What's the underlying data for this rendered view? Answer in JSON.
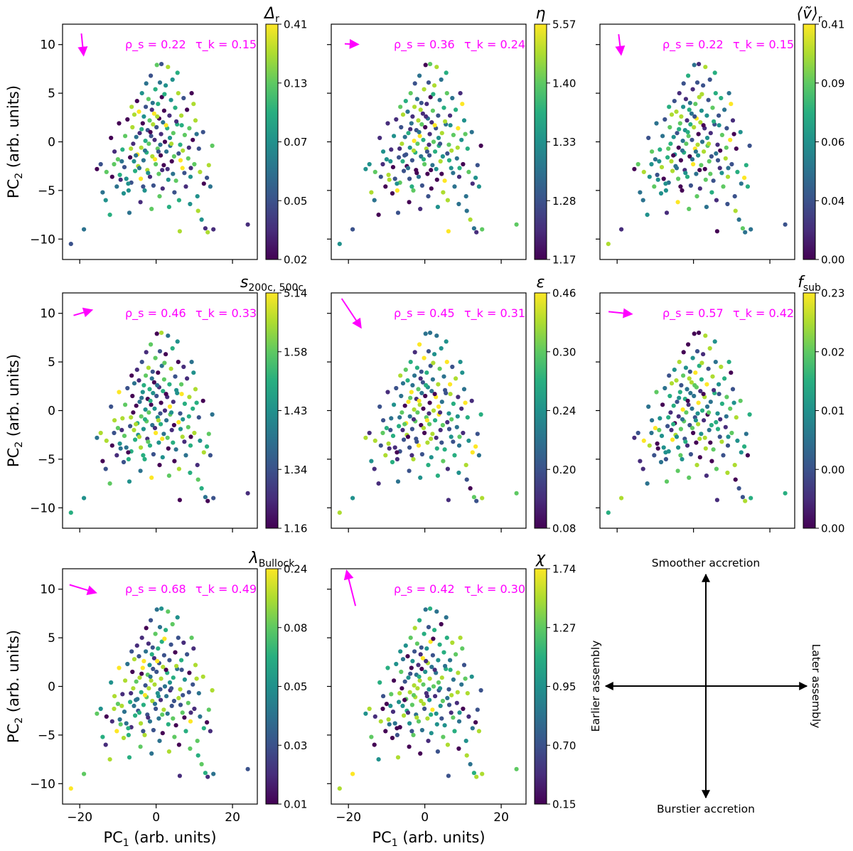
{
  "chart_data": {
    "type": "scatter",
    "figure_grid": "3x3",
    "x_axis": {
      "label": "PC",
      "label_sub": "1",
      "label_tail": " (arb. units)",
      "ticks": [
        -20,
        0,
        20
      ],
      "range": [
        -24.5,
        26.5
      ]
    },
    "y_axis": {
      "label": "PC",
      "label_sub": "2",
      "label_tail": " (arb. units)",
      "ticks": [
        -10,
        -5,
        0,
        5,
        10
      ],
      "range": [
        -12.1,
        12.1
      ]
    },
    "colormap": "viridis",
    "points": [
      [
        -22.3,
        -10.5
      ],
      [
        -18.9,
        -9.0
      ],
      [
        -14.5,
        -2.3
      ],
      [
        -14.0,
        -5.2
      ],
      [
        -13.2,
        -6.0
      ],
      [
        -13.0,
        -3.1
      ],
      [
        -12.1,
        -7.5
      ],
      [
        -11.5,
        -3.6
      ],
      [
        -11.0,
        -2.3
      ],
      [
        -10.9,
        -1.0
      ],
      [
        -10.3,
        -4.6
      ],
      [
        -9.5,
        -3.4
      ],
      [
        -9.0,
        -2.0
      ],
      [
        -8.8,
        -0.8
      ],
      [
        -8.1,
        0.6
      ],
      [
        -7.8,
        -3.8
      ],
      [
        -7.2,
        -5.0
      ],
      [
        -7.0,
        -7.3
      ],
      [
        -6.8,
        -1.6
      ],
      [
        -6.5,
        -4.2
      ],
      [
        -6.2,
        1.5
      ],
      [
        -6.0,
        -0.2
      ],
      [
        -5.7,
        2.8
      ],
      [
        -5.5,
        -3.0
      ],
      [
        -5.2,
        0.5
      ],
      [
        -5.0,
        4.2
      ],
      [
        -4.9,
        -1.3
      ],
      [
        -4.7,
        -2.5
      ],
      [
        -4.5,
        3.1
      ],
      [
        -4.3,
        0.9
      ],
      [
        -4.0,
        -3.8
      ],
      [
        -3.9,
        -0.6
      ],
      [
        -3.7,
        5.0
      ],
      [
        -3.5,
        1.9
      ],
      [
        -3.3,
        -1.9
      ],
      [
        -3.2,
        2.6
      ],
      [
        -3.0,
        -5.0
      ],
      [
        -2.8,
        0.1
      ],
      [
        -2.7,
        3.6
      ],
      [
        -2.5,
        -1.1
      ],
      [
        -2.3,
        -2.9
      ],
      [
        -2.2,
        1.2
      ],
      [
        -2.0,
        4.4
      ],
      [
        -1.9,
        -0.2
      ],
      [
        -1.7,
        2.2
      ],
      [
        -1.6,
        -3.6
      ],
      [
        -1.4,
        6.8
      ],
      [
        -1.3,
        0.6
      ],
      [
        -1.1,
        3.3
      ],
      [
        -1.0,
        -1.5
      ],
      [
        -0.8,
        1.8
      ],
      [
        -0.7,
        -4.5
      ],
      [
        -0.5,
        2.9
      ],
      [
        -0.4,
        0.2
      ],
      [
        -0.2,
        5.4
      ],
      [
        -0.1,
        -2.3
      ],
      [
        0.1,
        1.5
      ],
      [
        0.2,
        7.9
      ],
      [
        0.4,
        -0.7
      ],
      [
        0.5,
        3.9
      ],
      [
        0.7,
        -3.3
      ],
      [
        0.8,
        2.4
      ],
      [
        1.0,
        6.1
      ],
      [
        1.2,
        -1.4
      ],
      [
        1.3,
        0.8
      ],
      [
        1.5,
        4.6
      ],
      [
        1.7,
        -4.8
      ],
      [
        1.8,
        2.0
      ],
      [
        2.0,
        -2.4
      ],
      [
        2.1,
        3.2
      ],
      [
        2.3,
        0.0
      ],
      [
        2.5,
        5.8
      ],
      [
        2.7,
        -1.0
      ],
      [
        2.9,
        1.4
      ],
      [
        3.1,
        7.7
      ],
      [
        3.2,
        -3.9
      ],
      [
        3.5,
        2.7
      ],
      [
        3.7,
        -0.4
      ],
      [
        3.9,
        4.3
      ],
      [
        4.1,
        -2.0
      ],
      [
        4.3,
        6.4
      ],
      [
        4.5,
        0.9
      ],
      [
        4.7,
        -1.5
      ],
      [
        5.0,
        3.5
      ],
      [
        5.2,
        -4.0
      ],
      [
        5.5,
        1.8
      ],
      [
        5.8,
        5.0
      ],
      [
        6.0,
        -6.0
      ],
      [
        6.2,
        -9.2
      ],
      [
        6.3,
        -0.3
      ],
      [
        6.6,
        2.7
      ],
      [
        6.9,
        -2.7
      ],
      [
        7.2,
        4.5
      ],
      [
        7.5,
        0.7
      ],
      [
        7.8,
        -4.6
      ],
      [
        8.1,
        3.3
      ],
      [
        8.4,
        -1.7
      ],
      [
        8.7,
        1.4
      ],
      [
        9.0,
        -3.6
      ],
      [
        9.3,
        5.0
      ],
      [
        9.6,
        0.2
      ],
      [
        10.0,
        -2.3
      ],
      [
        10.3,
        2.2
      ],
      [
        10.8,
        -5.6
      ],
      [
        11.2,
        -0.7
      ],
      [
        11.5,
        -3.1
      ],
      [
        11.9,
        -8.0
      ],
      [
        12.3,
        1.0
      ],
      [
        12.5,
        -4.3
      ],
      [
        12.9,
        -8.9
      ],
      [
        13.3,
        -3.7
      ],
      [
        13.5,
        -9.3
      ],
      [
        13.8,
        -2.4
      ],
      [
        14.2,
        -4.6
      ],
      [
        14.7,
        -0.4
      ],
      [
        15.0,
        -9.0
      ],
      [
        -15.5,
        -2.8
      ],
      [
        -11.8,
        0.4
      ],
      [
        -9.7,
        1.9
      ],
      [
        -8.5,
        -5.3
      ],
      [
        -6.4,
        3.6
      ],
      [
        -4.1,
        -6.2
      ],
      [
        -2.6,
        6.0
      ],
      [
        0.9,
        -5.6
      ],
      [
        3.4,
        -6.7
      ],
      [
        5.6,
        7.1
      ],
      [
        7.0,
        -0.9
      ],
      [
        9.8,
        3.9
      ],
      [
        11.0,
        -7.1
      ],
      [
        -1.2,
        -6.9
      ],
      [
        1.4,
        8.0
      ],
      [
        4.8,
        -5.2
      ],
      [
        8.9,
        -6.4
      ],
      [
        -7.5,
        2.3
      ],
      [
        -3.4,
        -4.6
      ],
      [
        2.2,
        4.9
      ],
      [
        6.7,
        1.7
      ],
      [
        24.0,
        -8.5
      ],
      [
        -5.8,
        -2.0
      ],
      [
        -0.9,
        4.0
      ],
      [
        3.0,
        -2.8
      ],
      [
        7.4,
        -3.2
      ],
      [
        10.6,
        0.8
      ],
      [
        -10.0,
        -1.8
      ],
      [
        -4.4,
        -2.7
      ],
      [
        1.1,
        -0.3
      ],
      [
        5.3,
        2.1
      ],
      [
        8.6,
        -0.6
      ],
      [
        -2.9,
        -0.9
      ],
      [
        0.3,
        2.6
      ],
      [
        4.0,
        -0.2
      ],
      [
        -6.6,
        -0.7
      ],
      [
        -1.5,
        1.0
      ],
      [
        2.6,
        1.7
      ],
      [
        6.4,
        -1.9
      ],
      [
        -8.3,
        -2.6
      ],
      [
        -3.8,
        1.3
      ],
      [
        0.6,
        -1.0
      ],
      [
        3.6,
        0.4
      ],
      [
        -5.3,
        -1.4
      ],
      [
        -0.3,
        -1.8
      ],
      [
        4.4,
        -3.3
      ],
      [
        -7.3,
        -4.3
      ],
      [
        -2.1,
        -3.2
      ],
      [
        1.6,
        -2.9
      ],
      [
        5.9,
        -1.2
      ],
      [
        9.1,
        -2.7
      ],
      [
        -9.3,
        -3.9
      ]
    ],
    "panels": [
      {
        "label": "Δ",
        "label_sub": "r",
        "cb_ticks": [
          "0.41",
          "0.13",
          "0.07",
          "0.05",
          "0.02"
        ],
        "rho_s": "ρ_s = 0.22",
        "tau_k": "τ_k = 0.15",
        "arrow": [
          0.1,
          -1.0
        ],
        "arrow_len": 30,
        "seed": 3
      },
      {
        "label": "η",
        "label_sub": "",
        "cb_ticks": [
          "5.57",
          "1.40",
          "1.33",
          "1.28",
          "1.17"
        ],
        "rho_s": "ρ_s = 0.36",
        "tau_k": "τ_k = 0.24",
        "arrow": [
          1.0,
          -0.05
        ],
        "arrow_len": 18,
        "seed": 7
      },
      {
        "label": "⟨ṽ⟩",
        "label_sub": "r",
        "cb_ticks": [
          "0.41",
          "0.09",
          "0.06",
          "0.04",
          "0.00"
        ],
        "rho_s": "ρ_s = 0.22",
        "tau_k": "τ_k = 0.15",
        "arrow": [
          0.12,
          -1.0
        ],
        "arrow_len": 28,
        "seed": 11
      },
      {
        "label": "s",
        "label_sub": "200c, 500c",
        "cb_ticks": [
          "5.14",
          "1.58",
          "1.43",
          "1.34",
          "1.16"
        ],
        "rho_s": "ρ_s = 0.46",
        "tau_k": "τ_k = 0.33",
        "arrow": [
          1.0,
          0.3
        ],
        "arrow_len": 26,
        "seed": 13
      },
      {
        "label": "ε",
        "label_sub": "",
        "cb_ticks": [
          "0.46",
          "0.30",
          "0.24",
          "0.20",
          "0.08"
        ],
        "rho_s": "ρ_s = 0.45",
        "tau_k": "τ_k = 0.31",
        "arrow": [
          0.55,
          -0.83
        ],
        "arrow_len": 48,
        "seed": 17
      },
      {
        "label": "f",
        "label_sub": "sub",
        "cb_ticks": [
          "0.23",
          "0.02",
          "0.01",
          "0.00",
          "0.00"
        ],
        "rho_s": "ρ_s = 0.57",
        "tau_k": "τ_k = 0.42",
        "arrow": [
          1.0,
          -0.1
        ],
        "arrow_len": 32,
        "seed": 19
      },
      {
        "label": "λ",
        "label_sub": "Bullock",
        "cb_ticks": [
          "0.24",
          "0.08",
          "0.05",
          "0.03",
          "0.01"
        ],
        "rho_s": "ρ_s = 0.68",
        "tau_k": "τ_k = 0.49",
        "arrow": [
          1.0,
          -0.3
        ],
        "arrow_len": 38,
        "seed": 23
      },
      {
        "label": "χ",
        "label_sub": "",
        "cb_ticks": [
          "1.74",
          "1.27",
          "0.95",
          "0.70",
          "0.15"
        ],
        "rho_s": "ρ_s = 0.42",
        "tau_k": "τ_k = 0.30",
        "arrow": [
          -0.25,
          1.0
        ],
        "arrow_len": 50,
        "seed": 29
      }
    ]
  },
  "schematic": {
    "top": "Smoother accretion",
    "bottom": "Burstier accretion",
    "left": "Earlier assembly",
    "right": "Later assembly"
  },
  "colors": {
    "stat": "#ff00ff",
    "arrow": "#ff00ff",
    "axis": "#000000"
  }
}
